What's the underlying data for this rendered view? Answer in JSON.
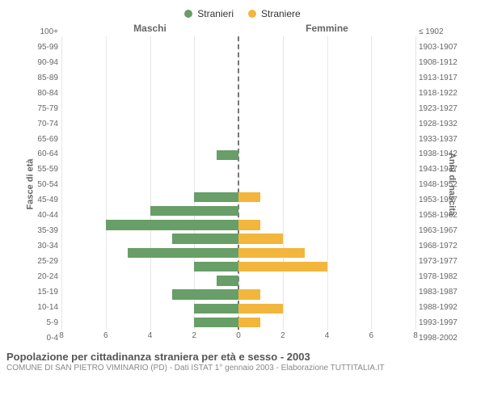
{
  "legend": {
    "male": {
      "label": "Stranieri",
      "color": "#689e68"
    },
    "female": {
      "label": "Straniere",
      "color": "#f2b63d"
    }
  },
  "panels": {
    "left": "Maschi",
    "right": "Femmine"
  },
  "yAxisLeft": {
    "title": "Fasce di età"
  },
  "yAxisRight": {
    "title": "Anni di nascita"
  },
  "xAxis": {
    "max": 8,
    "ticks": [
      8,
      6,
      4,
      2,
      0,
      2,
      4,
      6,
      8
    ]
  },
  "ageGroups": [
    {
      "age": "100+",
      "birth": "≤ 1902",
      "m": 0,
      "f": 0
    },
    {
      "age": "95-99",
      "birth": "1903-1907",
      "m": 0,
      "f": 0
    },
    {
      "age": "90-94",
      "birth": "1908-1912",
      "m": 0,
      "f": 0
    },
    {
      "age": "85-89",
      "birth": "1913-1917",
      "m": 0,
      "f": 0
    },
    {
      "age": "80-84",
      "birth": "1918-1922",
      "m": 0,
      "f": 0
    },
    {
      "age": "75-79",
      "birth": "1923-1927",
      "m": 0,
      "f": 0
    },
    {
      "age": "70-74",
      "birth": "1928-1932",
      "m": 0,
      "f": 0
    },
    {
      "age": "65-69",
      "birth": "1933-1937",
      "m": 0,
      "f": 0
    },
    {
      "age": "60-64",
      "birth": "1938-1942",
      "m": 1,
      "f": 0
    },
    {
      "age": "55-59",
      "birth": "1943-1947",
      "m": 0,
      "f": 0
    },
    {
      "age": "50-54",
      "birth": "1948-1952",
      "m": 0,
      "f": 0
    },
    {
      "age": "45-49",
      "birth": "1953-1957",
      "m": 2,
      "f": 1
    },
    {
      "age": "40-44",
      "birth": "1958-1962",
      "m": 4,
      "f": 0
    },
    {
      "age": "35-39",
      "birth": "1963-1967",
      "m": 6,
      "f": 1
    },
    {
      "age": "30-34",
      "birth": "1968-1972",
      "m": 3,
      "f": 2
    },
    {
      "age": "25-29",
      "birth": "1973-1977",
      "m": 5,
      "f": 3
    },
    {
      "age": "20-24",
      "birth": "1978-1982",
      "m": 2,
      "f": 4
    },
    {
      "age": "15-19",
      "birth": "1983-1987",
      "m": 1,
      "f": 0
    },
    {
      "age": "10-14",
      "birth": "1988-1992",
      "m": 3,
      "f": 1
    },
    {
      "age": "5-9",
      "birth": "1993-1997",
      "m": 2,
      "f": 2
    },
    {
      "age": "0-4",
      "birth": "1998-2002",
      "m": 2,
      "f": 1
    }
  ],
  "colors": {
    "grid": "#b6b6b6",
    "background": "#ffffff",
    "text": "#666666"
  },
  "footer": {
    "title": "Popolazione per cittadinanza straniera per età e sesso - 2003",
    "subtitle": "COMUNE DI SAN PIETRO VIMINARIO (PD) - Dati ISTAT 1° gennaio 2003 - Elaborazione TUTTITALIA.IT"
  }
}
